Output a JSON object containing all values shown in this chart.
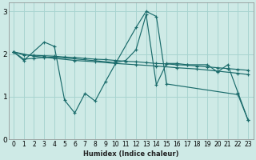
{
  "bg_color": "#ceeae6",
  "line_color": "#1a6b6b",
  "grid_color": "#a8d4d0",
  "xlabel": "Humidex (Indice chaleur)",
  "xlim": [
    -0.5,
    23.5
  ],
  "ylim": [
    0,
    3.2
  ],
  "yticks": [
    0,
    1,
    2,
    3
  ],
  "xticks": [
    0,
    1,
    2,
    3,
    4,
    5,
    6,
    7,
    8,
    9,
    10,
    11,
    12,
    13,
    14,
    15,
    16,
    17,
    18,
    19,
    20,
    21,
    22,
    23
  ],
  "lines": [
    {
      "x": [
        0,
        1,
        3,
        4,
        5,
        6,
        7,
        8,
        9,
        10,
        12,
        13,
        14,
        15,
        22,
        23
      ],
      "y": [
        2.05,
        1.85,
        2.28,
        2.18,
        0.92,
        0.62,
        1.08,
        0.9,
        1.35,
        1.78,
        2.62,
        3.0,
        2.88,
        1.3,
        1.05,
        0.45
      ]
    },
    {
      "x": [
        0,
        1,
        2,
        3,
        4,
        10,
        11,
        12,
        13,
        14,
        15,
        16,
        17,
        19,
        20,
        21,
        22,
        23
      ],
      "y": [
        2.05,
        1.88,
        1.9,
        1.92,
        1.93,
        1.8,
        1.85,
        2.1,
        2.92,
        1.28,
        1.78,
        1.78,
        1.75,
        1.75,
        1.58,
        1.75,
        1.1,
        0.45
      ]
    },
    {
      "x": [
        0,
        1,
        2,
        3,
        4,
        5,
        6,
        7,
        8,
        9,
        10,
        11,
        12,
        13,
        14,
        15,
        16,
        17,
        18,
        19,
        20,
        21,
        22,
        23
      ],
      "y": [
        2.05,
        1.98,
        1.97,
        1.96,
        1.95,
        1.93,
        1.92,
        1.9,
        1.88,
        1.87,
        1.85,
        1.83,
        1.82,
        1.8,
        1.78,
        1.77,
        1.75,
        1.74,
        1.72,
        1.7,
        1.68,
        1.66,
        1.64,
        1.62
      ]
    },
    {
      "x": [
        0,
        2,
        4,
        6,
        8,
        10,
        12,
        14,
        16,
        18,
        20,
        22,
        23
      ],
      "y": [
        2.05,
        1.95,
        1.9,
        1.85,
        1.82,
        1.78,
        1.75,
        1.72,
        1.68,
        1.65,
        1.6,
        1.55,
        1.52
      ]
    }
  ]
}
